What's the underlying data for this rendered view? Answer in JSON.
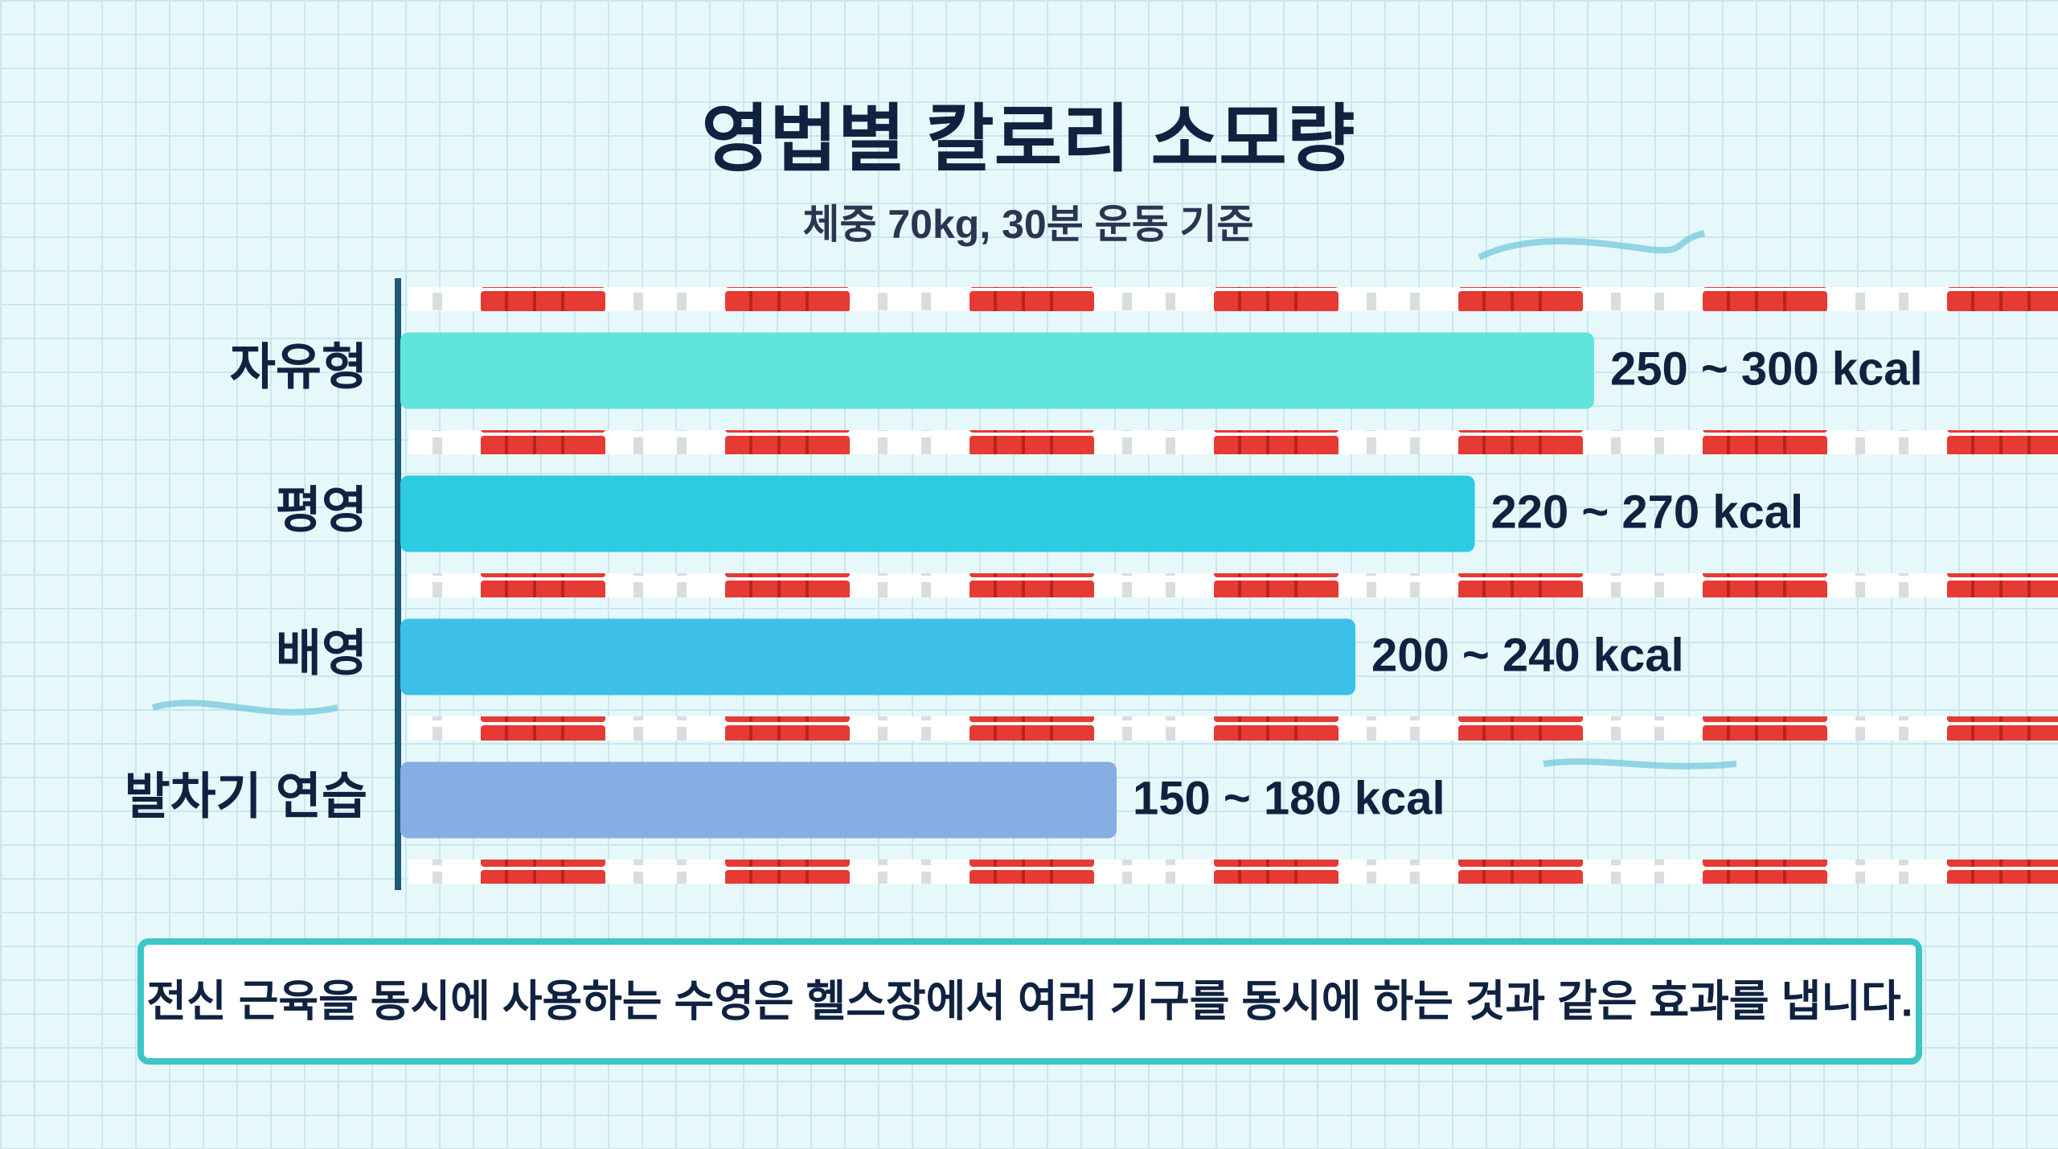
{
  "chart_data": {
    "type": "range-bar",
    "title": "영법별 칼로리 소모량",
    "subtitle": "체중 70kg, 30분 운동 기준",
    "categories": [
      "자유형",
      "평영",
      "배영",
      "발차기 연습"
    ],
    "low": [
      250,
      220,
      200,
      150
    ],
    "high": [
      300,
      270,
      240,
      180
    ],
    "value_labels": [
      "250 ~ 300 kcal",
      "220 ~ 270 kcal",
      "200 ~ 240 kcal",
      "150 ~ 180 kcal"
    ],
    "colors": [
      "#5fe5dc",
      "#2ccbe2",
      "#3cbfe8",
      "#86aee2"
    ],
    "annotation": "전신 근육을 동시에 사용하는 수영은 헬스장에서 여러 기구를 동시에 하는 것과 같은 효과를 냅니다."
  }
}
